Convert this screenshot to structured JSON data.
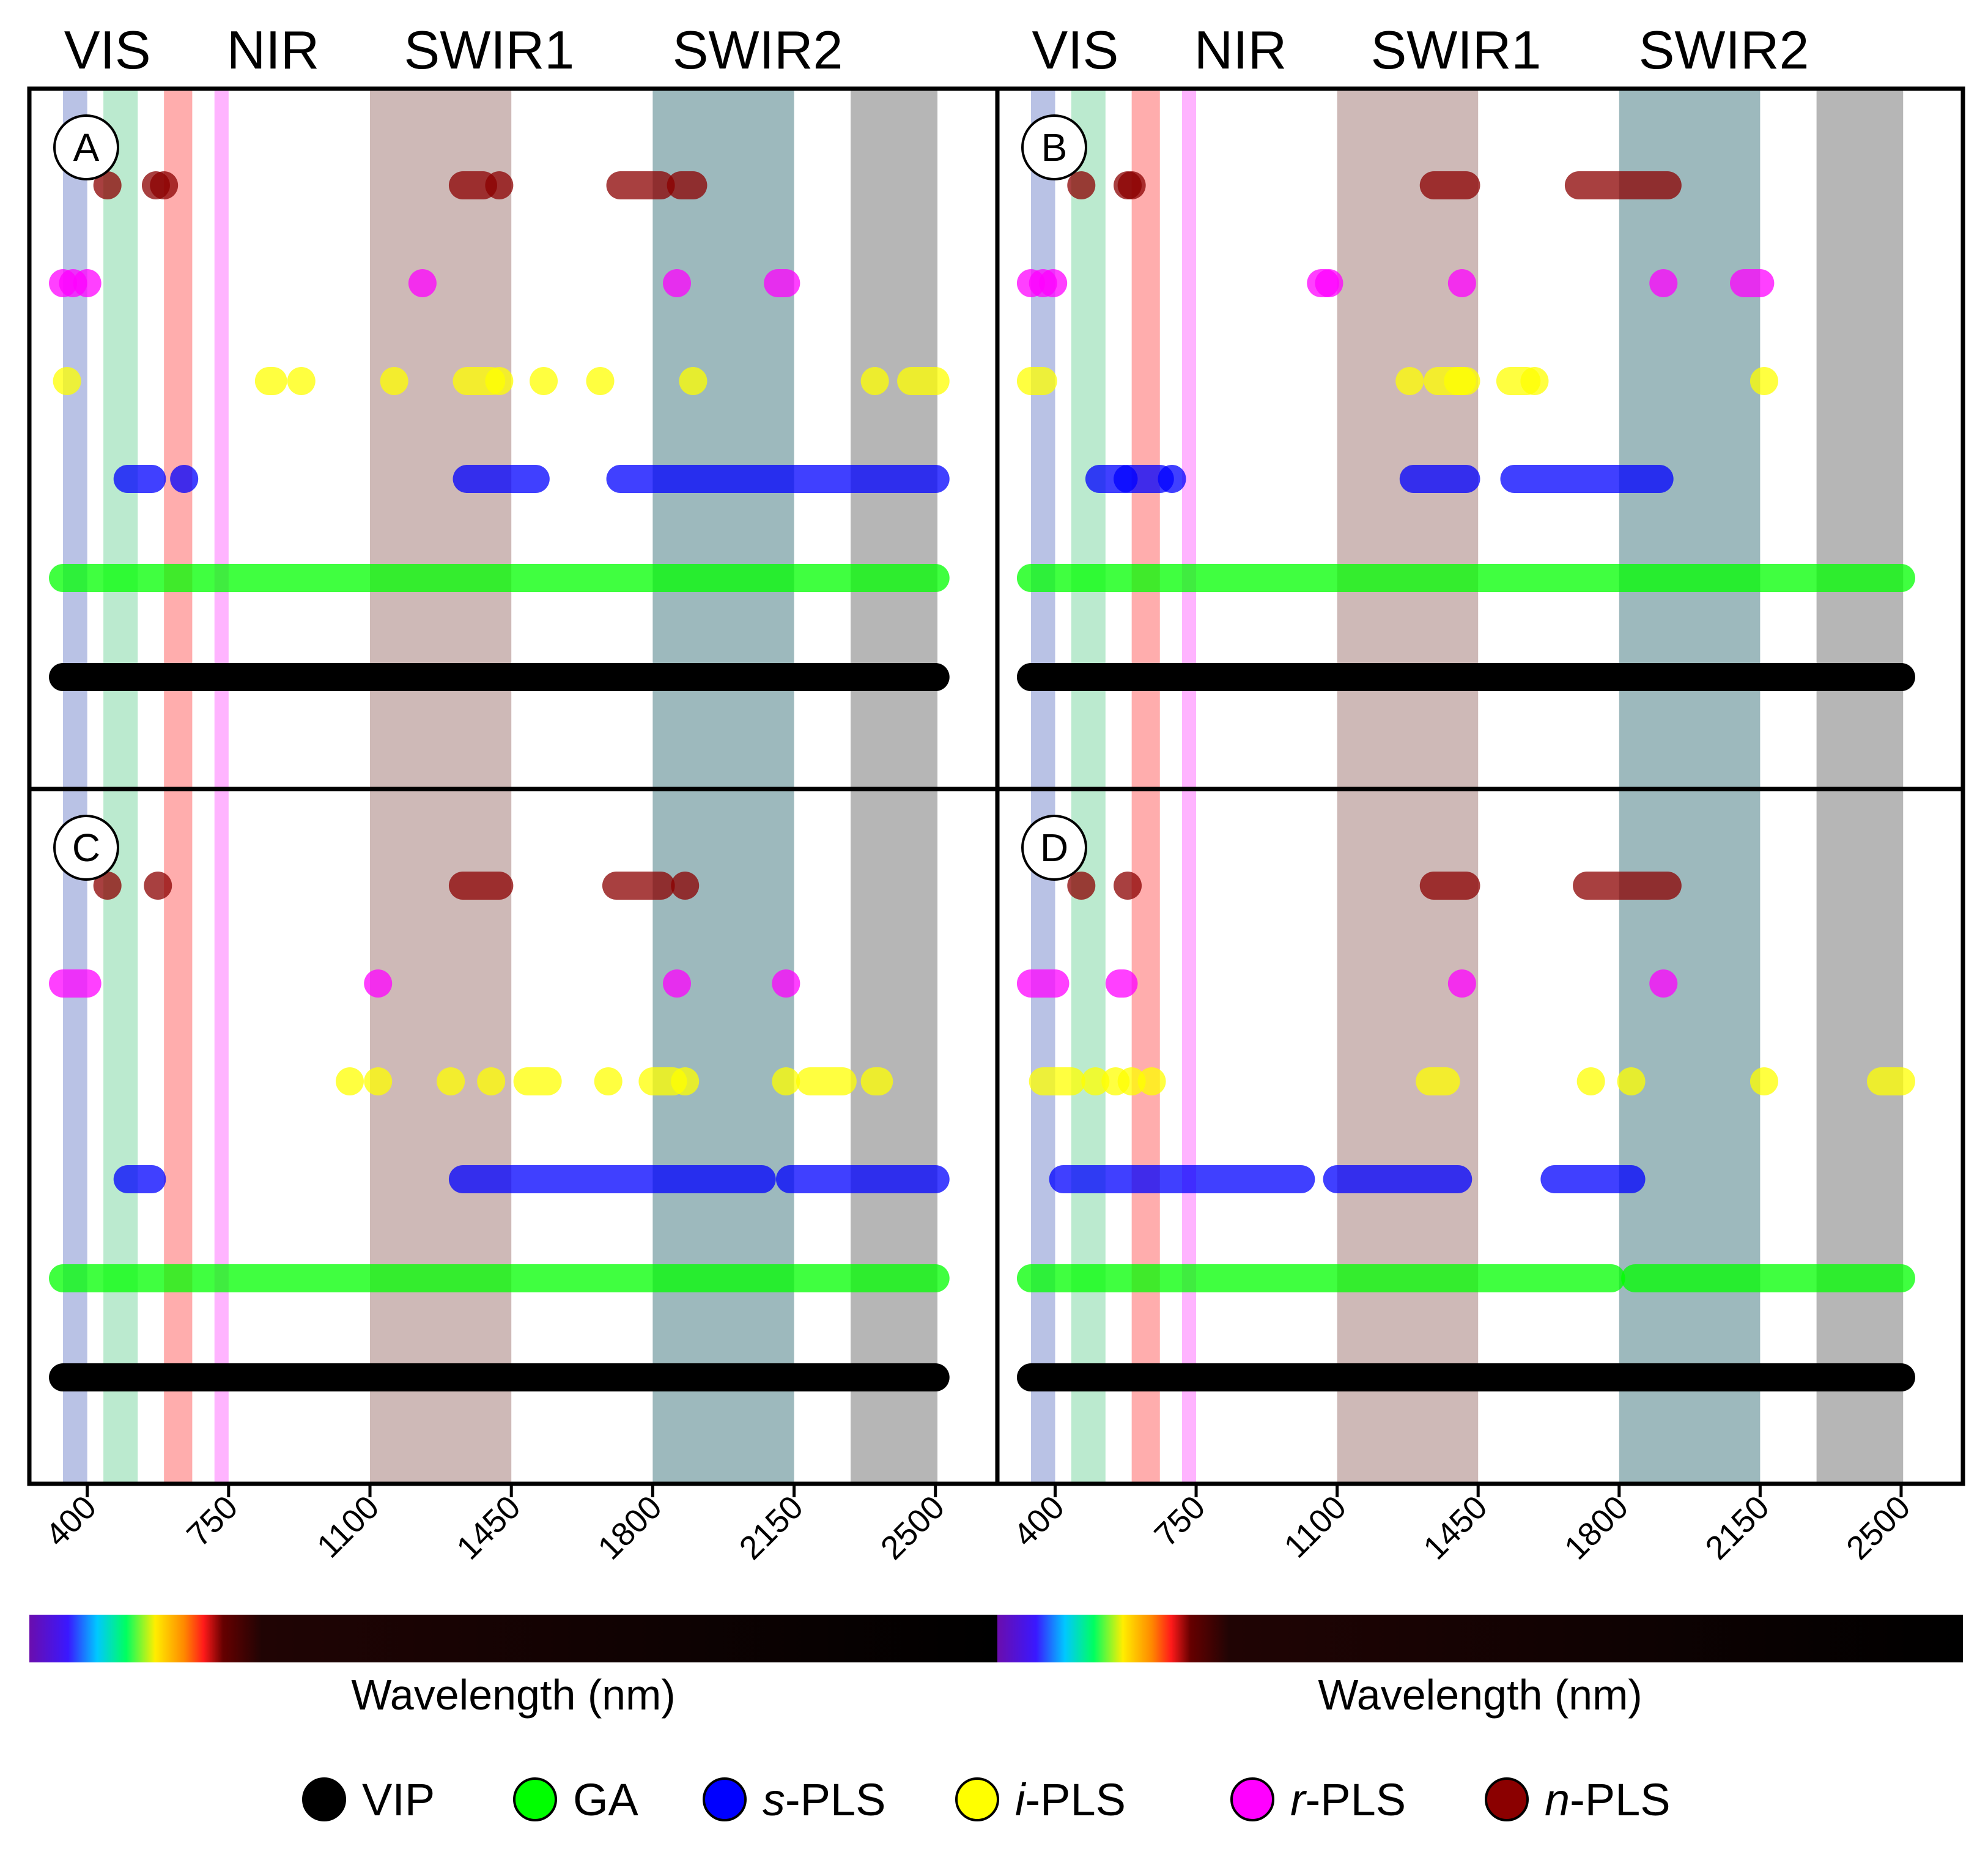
{
  "colors": {
    "VIP": "#000000",
    "GA": "#00ff00",
    "s-PLS": "#0000ff",
    "i-PLS": "#ffff00",
    "r-PLS": "#ff00ff",
    "n-PLS": "#8b0000",
    "band_blue": "#7f8fcf",
    "band_green": "#84d9a7",
    "band_red": "#ff6a6a",
    "band_magenta": "#ff77ff",
    "band_swir1": "#a5807c",
    "band_swir2": "#4c8086",
    "band_water": "#7a7a7a"
  },
  "region_labels": [
    {
      "text": "VIS",
      "center_nm": 450
    },
    {
      "text": "NIR",
      "center_nm": 860
    },
    {
      "text": "SWIR1",
      "center_nm": 1395
    },
    {
      "text": "SWIR2",
      "center_nm": 2060
    }
  ],
  "shaded_bands": [
    {
      "from": 340,
      "to": 400,
      "color": "band_blue"
    },
    {
      "from": 440,
      "to": 525,
      "color": "band_green"
    },
    {
      "from": 590,
      "to": 660,
      "color": "band_red"
    },
    {
      "from": 715,
      "to": 750,
      "color": "band_magenta"
    },
    {
      "from": 1100,
      "to": 1450,
      "color": "band_swir1"
    },
    {
      "from": 1800,
      "to": 2150,
      "color": "band_swir2"
    },
    {
      "from": 2290,
      "to": 2505,
      "color": "band_water"
    }
  ],
  "xaxis": {
    "ticks": [
      "400",
      "750",
      "1100",
      "1450",
      "1800",
      "2150",
      "2500"
    ],
    "xlabel": "Wavelength (nm)",
    "xlim": [
      290,
      2620
    ]
  },
  "legend": [
    {
      "key": "VIP",
      "prefix": "VIP",
      "suffix": ""
    },
    {
      "key": "GA",
      "prefix": "GA",
      "suffix": ""
    },
    {
      "key": "s-PLS",
      "prefix": "s",
      "suffix": "-PLS"
    },
    {
      "key": "i-PLS",
      "prefix": "i",
      "suffix": "-PLS"
    },
    {
      "key": "r-PLS",
      "prefix": "r",
      "suffix": "-PLS"
    },
    {
      "key": "n-PLS",
      "prefix": "n",
      "suffix": "-PLS"
    }
  ],
  "chart_data": [
    {
      "type": "scatter",
      "panel": "A",
      "series": [
        {
          "name": "n-PLS",
          "segments": [
            [
              450,
              450
            ],
            [
              570,
              570
            ],
            [
              590,
              590
            ],
            [
              1330,
              1380
            ],
            [
              1420,
              1420
            ],
            [
              1720,
              1820
            ],
            [
              1870,
              1900
            ]
          ]
        },
        {
          "name": "r-PLS",
          "segments": [
            [
              340,
              340
            ],
            [
              365,
              365
            ],
            [
              400,
              400
            ],
            [
              1230,
              1230
            ],
            [
              1860,
              1860
            ],
            [
              2110,
              2130
            ]
          ]
        },
        {
          "name": "i-PLS",
          "segments": [
            [
              350,
              350
            ],
            [
              850,
              860
            ],
            [
              930,
              930
            ],
            [
              1160,
              1160
            ],
            [
              1340,
              1400
            ],
            [
              1420,
              1420
            ],
            [
              1530,
              1530
            ],
            [
              1670,
              1670
            ],
            [
              1900,
              1900
            ],
            [
              2350,
              2350
            ],
            [
              2440,
              2500
            ]
          ]
        },
        {
          "name": "s-PLS",
          "segments": [
            [
              500,
              560
            ],
            [
              640,
              640
            ],
            [
              1340,
              1510
            ],
            [
              1720,
              2500
            ]
          ]
        },
        {
          "name": "GA",
          "segments": [
            [
              340,
              2500
            ]
          ]
        },
        {
          "name": "VIP",
          "segments": [
            [
              340,
              2500
            ]
          ]
        }
      ]
    },
    {
      "type": "scatter",
      "panel": "B",
      "series": [
        {
          "name": "n-PLS",
          "segments": [
            [
              465,
              465
            ],
            [
              580,
              580
            ],
            [
              590,
              590
            ],
            [
              1340,
              1420
            ],
            [
              1700,
              1920
            ]
          ]
        },
        {
          "name": "r-PLS",
          "segments": [
            [
              340,
              340
            ],
            [
              370,
              370
            ],
            [
              395,
              395
            ],
            [
              1060,
              1070
            ],
            [
              1080,
              1080
            ],
            [
              1410,
              1410
            ],
            [
              1910,
              1910
            ],
            [
              2110,
              2150
            ]
          ]
        },
        {
          "name": "i-PLS",
          "segments": [
            [
              340,
              370
            ],
            [
              1280,
              1280
            ],
            [
              1350,
              1410
            ],
            [
              1400,
              1420
            ],
            [
              1530,
              1570
            ],
            [
              1590,
              1590
            ],
            [
              2160,
              2160
            ]
          ]
        },
        {
          "name": "s-PLS",
          "segments": [
            [
              510,
              570
            ],
            [
              580,
              660
            ],
            [
              690,
              690
            ],
            [
              1290,
              1420
            ],
            [
              1540,
              1900
            ]
          ]
        },
        {
          "name": "GA",
          "segments": [
            [
              340,
              2500
            ]
          ]
        },
        {
          "name": "VIP",
          "segments": [
            [
              340,
              2500
            ]
          ]
        }
      ]
    },
    {
      "type": "scatter",
      "panel": "C",
      "series": [
        {
          "name": "n-PLS",
          "segments": [
            [
              450,
              450
            ],
            [
              575,
              575
            ],
            [
              1330,
              1420
            ],
            [
              1710,
              1820
            ],
            [
              1880,
              1880
            ]
          ]
        },
        {
          "name": "r-PLS",
          "segments": [
            [
              340,
              400
            ],
            [
              1120,
              1120
            ],
            [
              1860,
              1860
            ],
            [
              2130,
              2130
            ]
          ]
        },
        {
          "name": "i-PLS",
          "segments": [
            [
              1050,
              1050
            ],
            [
              1120,
              1120
            ],
            [
              1300,
              1300
            ],
            [
              1400,
              1400
            ],
            [
              1490,
              1540
            ],
            [
              1690,
              1690
            ],
            [
              1800,
              1850
            ],
            [
              1880,
              1880
            ],
            [
              2130,
              2130
            ],
            [
              2190,
              2270
            ],
            [
              2350,
              2360
            ]
          ]
        },
        {
          "name": "s-PLS",
          "segments": [
            [
              500,
              560
            ],
            [
              1330,
              2070
            ],
            [
              2140,
              2500
            ]
          ]
        },
        {
          "name": "GA",
          "segments": [
            [
              340,
              2500
            ]
          ]
        },
        {
          "name": "VIP",
          "segments": [
            [
              340,
              2500
            ]
          ]
        }
      ]
    },
    {
      "type": "scatter",
      "panel": "D",
      "series": [
        {
          "name": "n-PLS",
          "segments": [
            [
              465,
              465
            ],
            [
              580,
              580
            ],
            [
              1340,
              1420
            ],
            [
              1720,
              1920
            ]
          ]
        },
        {
          "name": "r-PLS",
          "segments": [
            [
              340,
              400
            ],
            [
              560,
              570
            ],
            [
              1410,
              1410
            ],
            [
              1910,
              1910
            ]
          ]
        },
        {
          "name": "i-PLS",
          "segments": [
            [
              370,
              440
            ],
            [
              500,
              500
            ],
            [
              550,
              550
            ],
            [
              590,
              590
            ],
            [
              640,
              640
            ],
            [
              1330,
              1370
            ],
            [
              1730,
              1730
            ],
            [
              1830,
              1830
            ],
            [
              2160,
              2160
            ],
            [
              2450,
              2500
            ]
          ]
        },
        {
          "name": "s-PLS",
          "segments": [
            [
              420,
              1010
            ],
            [
              1100,
              1400
            ],
            [
              1640,
              1830
            ]
          ]
        },
        {
          "name": "GA",
          "segments": [
            [
              340,
              1780
            ],
            [
              1840,
              2500
            ]
          ]
        },
        {
          "name": "VIP",
          "segments": [
            [
              340,
              2500
            ]
          ]
        }
      ]
    }
  ]
}
